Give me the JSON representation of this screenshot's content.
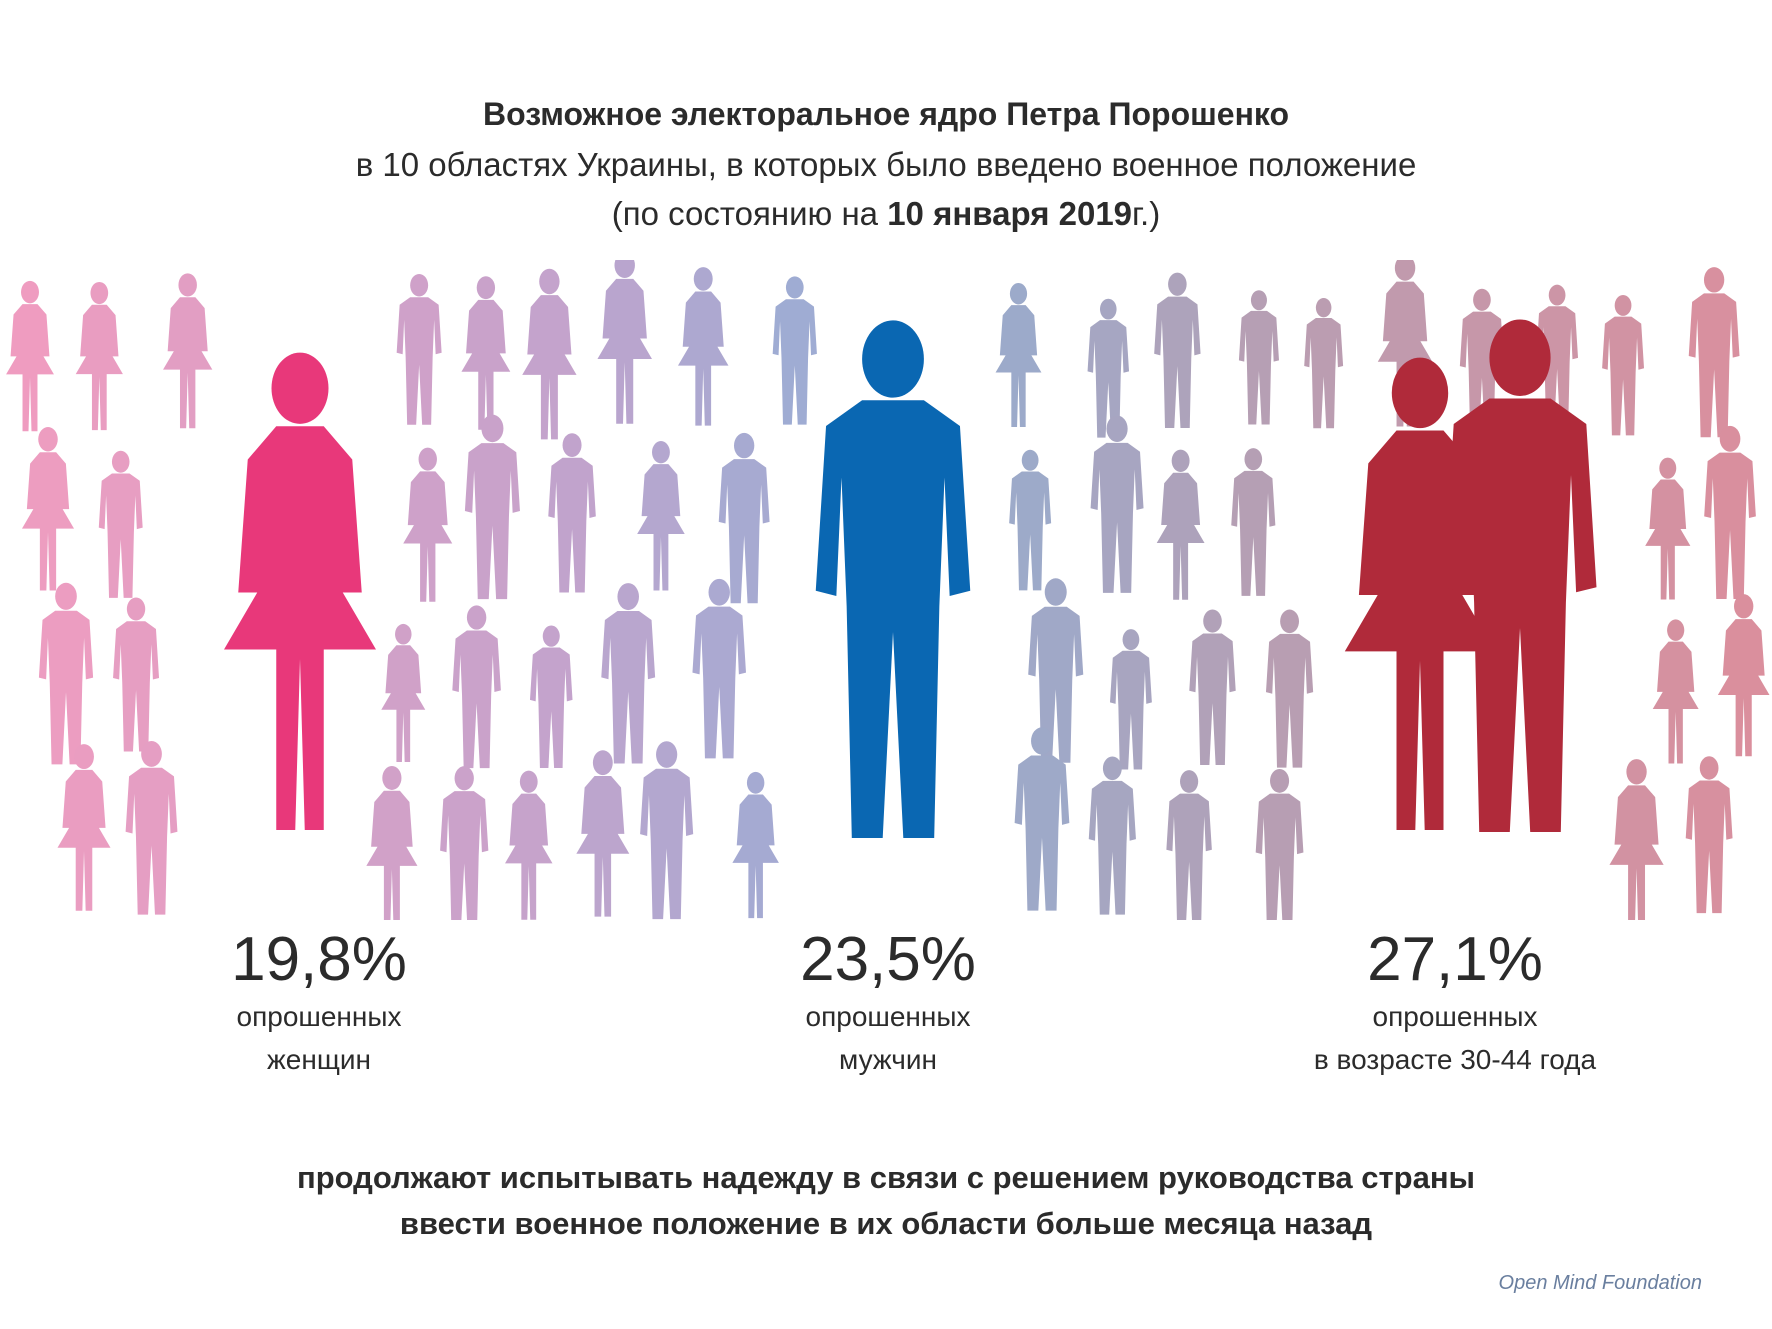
{
  "header": {
    "title": "Возможное электоральное ядро Петра Порошенко",
    "subtitle": "в 10 областях Украины, в которых было введено военное положение",
    "date_prefix": "(по состоянию на ",
    "date_bold": "10 января 2019",
    "date_suffix": "г.)"
  },
  "stats": [
    {
      "value": "19,8%",
      "line1": "опрошенных",
      "line2": "женщин",
      "color": "#e8387a"
    },
    {
      "value": "23,5%",
      "line1": "опрошенных",
      "line2": "мужчин",
      "color": "#0a67b2"
    },
    {
      "value": "27,1%",
      "line1": "опрошенных",
      "line2": "в возрасте 30-44 года",
      "color": "#b02a3a"
    }
  ],
  "conclusion": {
    "line1": "продолжают испытывать  надежду в связи с решением руководства страны",
    "line2": "ввести военное положение в их области больше месяца назад"
  },
  "footer": {
    "source": "Open  Mind  Foundation"
  },
  "colors": {
    "pink": "#f19cbf",
    "lilac": "#c3a3cc",
    "blue": "#8fb0d6",
    "mauve": "#b59fb4",
    "rose": "#dc8e9c"
  }
}
